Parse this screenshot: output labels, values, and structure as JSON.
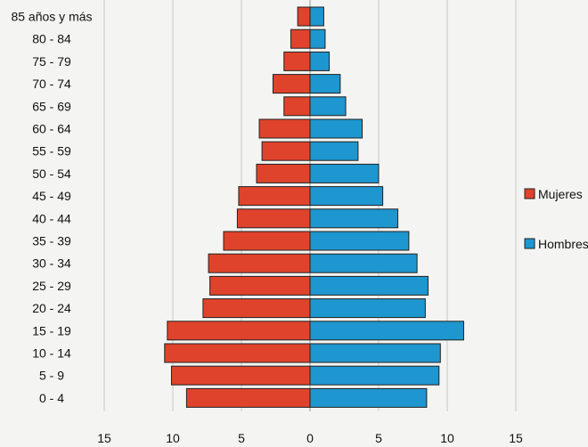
{
  "chart_data": {
    "type": "bar",
    "orientation": "horizontal",
    "layout": "population-pyramid",
    "title": "",
    "xlabel": "",
    "ylabel": "",
    "categories": [
      "85 años y más",
      "80 - 84",
      "75 - 79",
      "70 - 74",
      "65 - 69",
      "60 - 64",
      "55 - 59",
      "50 - 54",
      "45 - 49",
      "40 - 44",
      "35 - 39",
      "30 - 34",
      "25 - 29",
      "20 - 24",
      "15 - 19",
      "10 - 14",
      "5 - 9",
      "0 - 4"
    ],
    "series": [
      {
        "name": "Mujeres",
        "color": "#e0432b",
        "side": "left",
        "values": [
          0.9,
          1.4,
          1.9,
          2.7,
          1.9,
          3.7,
          3.5,
          3.9,
          5.2,
          5.3,
          6.3,
          7.4,
          7.3,
          7.8,
          10.4,
          10.6,
          10.1,
          9.0
        ]
      },
      {
        "name": "Hombres",
        "color": "#1e96cf",
        "side": "right",
        "values": [
          1.0,
          1.1,
          1.4,
          2.2,
          2.6,
          3.8,
          3.5,
          5.0,
          5.3,
          6.4,
          7.2,
          7.8,
          8.6,
          8.4,
          11.2,
          9.5,
          9.4,
          8.5
        ]
      }
    ],
    "xlim": [
      -15,
      15
    ],
    "xticks": [
      15,
      10,
      5,
      0,
      5,
      10,
      15
    ],
    "grid": true,
    "legend": "right"
  }
}
